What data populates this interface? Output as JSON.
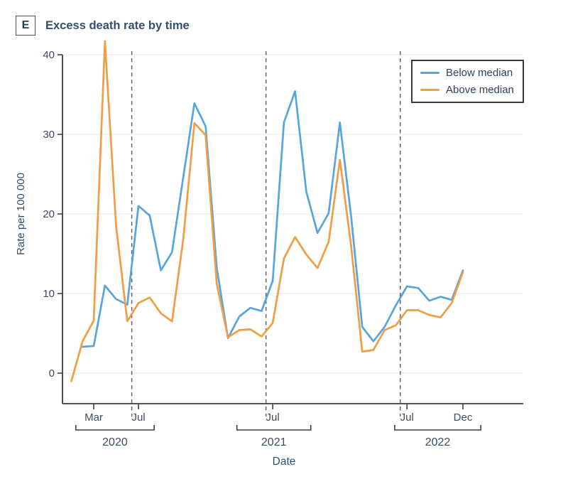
{
  "panel": {
    "label": "E",
    "title": "Excess death rate by time"
  },
  "chart_data": {
    "type": "line",
    "title": "Excess death rate by time",
    "xlabel": "Date",
    "ylabel": "Rate per 100 000",
    "yticks": [
      0,
      10,
      20,
      30,
      40
    ],
    "ylim": [
      -4,
      42
    ],
    "grid": "horizontal-light",
    "x_unit": "month",
    "months": [
      "Jan 2020",
      "Feb 2020",
      "Mar 2020",
      "Apr 2020",
      "May 2020",
      "Jun 2020",
      "Jul 2020",
      "Aug 2020",
      "Sep 2020",
      "Oct 2020",
      "Nov 2020",
      "Dec 2020",
      "Jan 2021",
      "Feb 2021",
      "Mar 2021",
      "Apr 2021",
      "May 2021",
      "Jun 2021",
      "Jul 2021",
      "Aug 2021",
      "Sep 2021",
      "Oct 2021",
      "Nov 2021",
      "Dec 2021",
      "Jan 2022",
      "Feb 2022",
      "Mar 2022",
      "Apr 2022",
      "May 2022",
      "Jun 2022",
      "Jul 2022",
      "Aug 2022",
      "Sep 2022",
      "Oct 2022",
      "Nov 2022",
      "Dec 2022"
    ],
    "series": [
      {
        "name": "Below median",
        "color": "#56a5dc",
        "values": [
          null,
          3.3,
          3.4,
          11.0,
          9.3,
          8.6,
          21.0,
          19.8,
          12.9,
          15.2,
          24.6,
          33.9,
          31.0,
          13.2,
          4.4,
          7.1,
          8.2,
          7.8,
          11.6,
          31.5,
          35.4,
          22.8,
          17.6,
          20.1,
          31.5,
          19.8,
          5.8,
          4.0,
          5.8,
          8.5,
          10.9,
          10.7,
          9.1,
          9.6,
          9.2,
          12.9
        ]
      },
      {
        "name": "Above median",
        "color": "#f09d45",
        "values": [
          -1.0,
          4.0,
          6.6,
          41.7,
          18.5,
          6.5,
          8.8,
          9.5,
          7.5,
          6.5,
          16.8,
          31.4,
          29.9,
          11.2,
          4.5,
          5.4,
          5.5,
          4.6,
          6.3,
          14.4,
          17.1,
          14.9,
          13.2,
          16.5,
          26.8,
          16.1,
          2.7,
          2.9,
          5.4,
          6.0,
          7.9,
          7.9,
          7.3,
          7.0,
          8.8,
          12.7
        ]
      }
    ],
    "x_ticks": [
      {
        "label": "Mar",
        "month": "Mar 2020",
        "index": 2
      },
      {
        "label": "Jul",
        "month": "Jul 2020",
        "index": 6
      },
      {
        "label": "Jul",
        "month": "Jul 2021",
        "index": 18
      },
      {
        "label": "Jul",
        "month": "Jul 2022",
        "index": 30
      },
      {
        "label": "Dec",
        "month": "Dec 2022",
        "index": 35
      }
    ],
    "year_brackets": [
      {
        "label": "2020",
        "start_index": 0.4,
        "end_index": 7.4
      },
      {
        "label": "2021",
        "start_index": 14.8,
        "end_index": 21.4
      },
      {
        "label": "2022",
        "start_index": 28.9,
        "end_index": 36.6
      }
    ],
    "dashed_lines_index": [
      5.4,
      17.4,
      29.4
    ],
    "legend": {
      "position": "top-right",
      "entries": [
        "Below median",
        "Above median"
      ]
    }
  },
  "colors": {
    "title": "#31506e",
    "axis": "#3f3f3f",
    "tick_label": "#3b4c63",
    "gridline": "#e8e8e8",
    "dashed": "#676767",
    "below_median": "#56a5dc",
    "above_median": "#f09d45",
    "background": "#ffffff"
  }
}
